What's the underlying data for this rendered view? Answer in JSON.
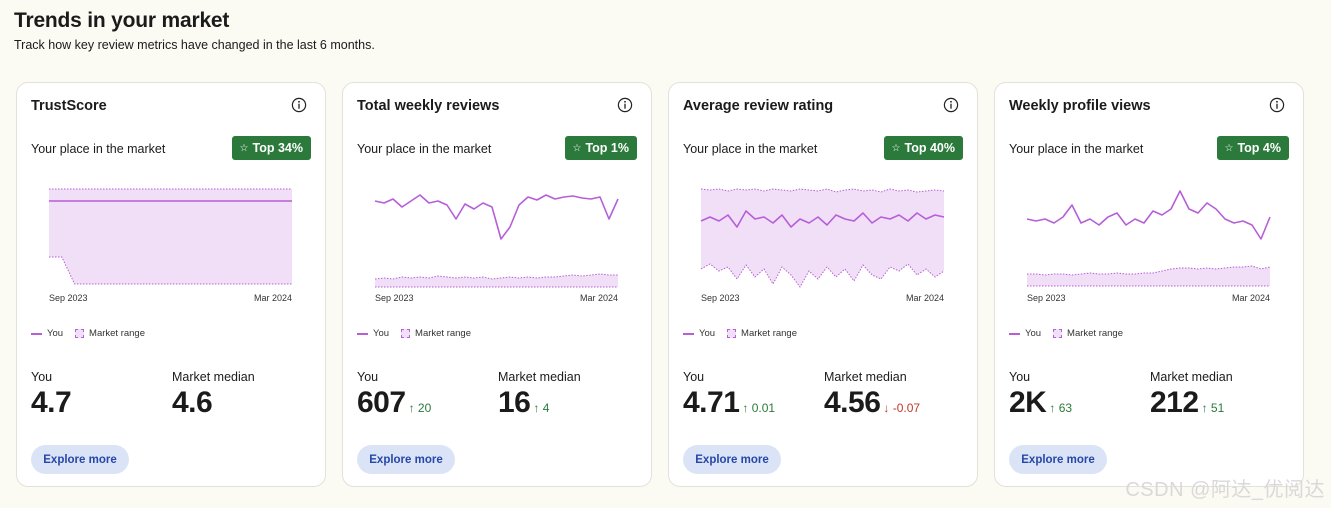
{
  "page": {
    "title": "Trends in your market",
    "subtitle": "Track how key review metrics have changed in the last 6 months."
  },
  "colors": {
    "you_line": "#b65fd8",
    "range_fill": "#f1dff7",
    "badge": "#2b7a3b",
    "button_bg": "#dbe4f7",
    "button_text": "#2747a8"
  },
  "cards": [
    {
      "title": "TrustScore",
      "place_label": "Your place in the market",
      "badge": "Top 34%",
      "legend_you": "You",
      "legend_range": "Market range",
      "you_label": "You",
      "you_value": "4.7",
      "you_delta": "",
      "median_label": "Market median",
      "median_value": "4.6",
      "median_delta": "",
      "button": "Explore more",
      "chart_data": {
        "type": "area",
        "xlabels": [
          "Sep 2023",
          "Mar 2024"
        ],
        "you": [
          0.88,
          0.88,
          0.88,
          0.88,
          0.88,
          0.88,
          0.88,
          0.88,
          0.88,
          0.88,
          0.88,
          0.88,
          0.88,
          0.88,
          0.88,
          0.88,
          0.88,
          0.88,
          0.88,
          0.88
        ],
        "range_hi": [
          1,
          1,
          1,
          1,
          1,
          1,
          1,
          1,
          1,
          1,
          1,
          1,
          1,
          1,
          1,
          1,
          1,
          1,
          1,
          1
        ],
        "range_lo": [
          0.32,
          0.32,
          0.05,
          0.05,
          0.05,
          0.05,
          0.05,
          0.05,
          0.05,
          0.05,
          0.05,
          0.05,
          0.05,
          0.05,
          0.05,
          0.05,
          0.05,
          0.05,
          0.05,
          0.05
        ]
      }
    },
    {
      "title": "Total weekly reviews",
      "place_label": "Your place in the market",
      "badge": "Top 1%",
      "legend_you": "You",
      "legend_range": "Market range",
      "you_label": "You",
      "you_value": "607",
      "you_delta": "↑ 20",
      "median_label": "Market median",
      "median_value": "16",
      "median_delta": "↑ 4",
      "button": "Explore more",
      "chart_data": {
        "type": "area",
        "xlabels": [
          "Sep 2023",
          "Mar 2024"
        ],
        "you": [
          0.88,
          0.86,
          0.9,
          0.82,
          0.88,
          0.94,
          0.86,
          0.88,
          0.84,
          0.7,
          0.85,
          0.8,
          0.86,
          0.82,
          0.5,
          0.62,
          0.84,
          0.92,
          0.89,
          0.94,
          0.9,
          0.92,
          0.93,
          0.91,
          0.9,
          0.92,
          0.7,
          0.9
        ],
        "range_hi": [
          0.1,
          0.11,
          0.1,
          0.12,
          0.11,
          0.12,
          0.11,
          0.13,
          0.12,
          0.11,
          0.12,
          0.11,
          0.12,
          0.1,
          0.11,
          0.12,
          0.11,
          0.12,
          0.11,
          0.12,
          0.12,
          0.13,
          0.14,
          0.13,
          0.14,
          0.15,
          0.14,
          0.14
        ],
        "range_lo": [
          0.02,
          0.02,
          0.02,
          0.02,
          0.02,
          0.02,
          0.02,
          0.02,
          0.02,
          0.02,
          0.02,
          0.02,
          0.02,
          0.02,
          0.02,
          0.02,
          0.02,
          0.02,
          0.02,
          0.02,
          0.02,
          0.02,
          0.02,
          0.02,
          0.02,
          0.02,
          0.02,
          0.02
        ]
      }
    },
    {
      "title": "Average review rating",
      "place_label": "Your place in the market",
      "badge": "Top 40%",
      "legend_you": "You",
      "legend_range": "Market range",
      "you_label": "You",
      "you_value": "4.71",
      "you_delta": "↑ 0.01",
      "median_label": "Market median",
      "median_value": "4.56",
      "median_delta": "↓ -0.07",
      "button": "Explore more",
      "chart_data": {
        "type": "area",
        "xlabels": [
          "Sep 2023",
          "Mar 2024"
        ],
        "you": [
          0.68,
          0.72,
          0.68,
          0.74,
          0.62,
          0.78,
          0.7,
          0.72,
          0.66,
          0.74,
          0.62,
          0.7,
          0.66,
          0.72,
          0.64,
          0.74,
          0.7,
          0.68,
          0.76,
          0.66,
          0.72,
          0.7,
          0.74,
          0.68,
          0.76,
          0.7,
          0.74,
          0.72
        ],
        "range_hi": [
          1,
          0.99,
          1,
          0.98,
          1,
          0.99,
          1,
          0.98,
          1,
          0.99,
          0.98,
          1,
          0.99,
          0.98,
          1,
          0.97,
          0.99,
          1,
          0.98,
          0.99,
          0.97,
          1,
          0.98,
          0.99,
          0.97,
          0.98,
          0.99,
          0.98
        ],
        "range_lo": [
          0.2,
          0.25,
          0.18,
          0.22,
          0.1,
          0.24,
          0.12,
          0.2,
          0.05,
          0.22,
          0.14,
          0.02,
          0.18,
          0.1,
          0.22,
          0.12,
          0.2,
          0.08,
          0.24,
          0.14,
          0.1,
          0.22,
          0.18,
          0.25,
          0.14,
          0.2,
          0.12,
          0.18
        ]
      }
    },
    {
      "title": "Weekly profile views",
      "place_label": "Your place in the market",
      "badge": "Top 4%",
      "legend_you": "You",
      "legend_range": "Market range",
      "you_label": "You",
      "you_value": "2K",
      "you_delta": "↑ 63",
      "median_label": "Market median",
      "median_value": "212",
      "median_delta": "↑ 51",
      "button": "Explore more",
      "chart_data": {
        "type": "area",
        "xlabels": [
          "Sep 2023",
          "Mar 2024"
        ],
        "you": [
          0.7,
          0.68,
          0.7,
          0.66,
          0.72,
          0.84,
          0.66,
          0.7,
          0.64,
          0.72,
          0.76,
          0.64,
          0.7,
          0.66,
          0.78,
          0.74,
          0.8,
          0.98,
          0.8,
          0.76,
          0.86,
          0.8,
          0.7,
          0.66,
          0.68,
          0.64,
          0.5,
          0.72
        ],
        "range_hi": [
          0.15,
          0.15,
          0.14,
          0.15,
          0.15,
          0.14,
          0.15,
          0.16,
          0.15,
          0.15,
          0.16,
          0.15,
          0.15,
          0.16,
          0.16,
          0.18,
          0.2,
          0.21,
          0.21,
          0.2,
          0.21,
          0.2,
          0.21,
          0.22,
          0.22,
          0.23,
          0.2,
          0.22
        ],
        "range_lo": [
          0.03,
          0.03,
          0.03,
          0.03,
          0.03,
          0.03,
          0.03,
          0.03,
          0.03,
          0.03,
          0.03,
          0.03,
          0.03,
          0.03,
          0.03,
          0.03,
          0.03,
          0.03,
          0.03,
          0.03,
          0.03,
          0.03,
          0.03,
          0.03,
          0.03,
          0.03,
          0.03,
          0.03
        ]
      }
    }
  ],
  "watermark": "CSDN @阿达_优阅达"
}
